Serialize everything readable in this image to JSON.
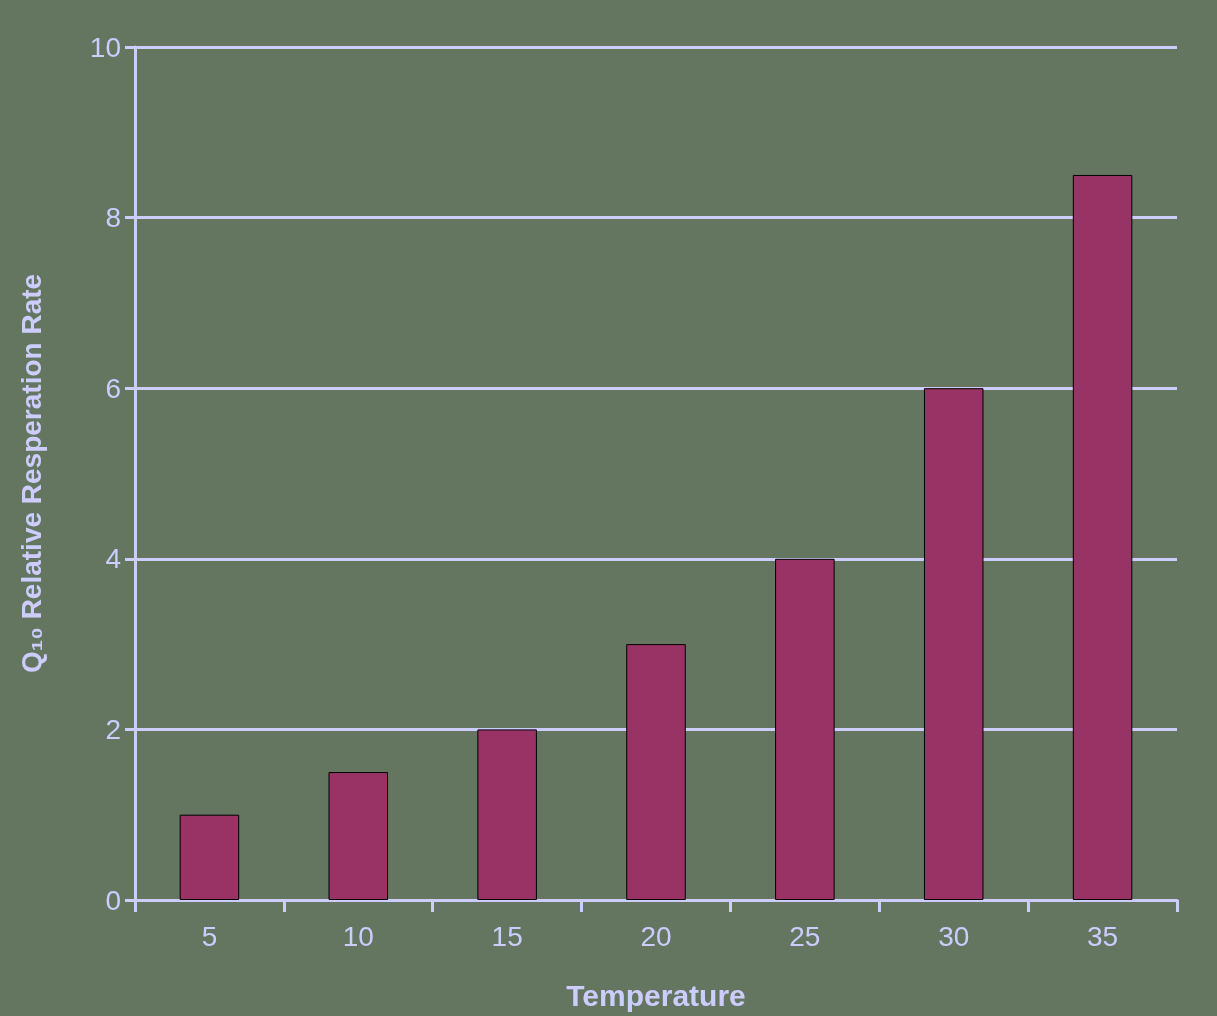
{
  "chart_data": {
    "type": "bar",
    "xlabel": "Temperature",
    "ylabel": "Q₁₀ Relative Resperation Rate",
    "categories": [
      "5",
      "10",
      "15",
      "20",
      "25",
      "30",
      "35"
    ],
    "values": [
      1,
      1.5,
      2,
      3,
      4,
      6,
      8.5
    ],
    "color": "#993366",
    "ylim": [
      0,
      10
    ],
    "yticks": [
      0,
      2,
      4,
      6,
      8,
      10
    ],
    "grid": "y"
  }
}
